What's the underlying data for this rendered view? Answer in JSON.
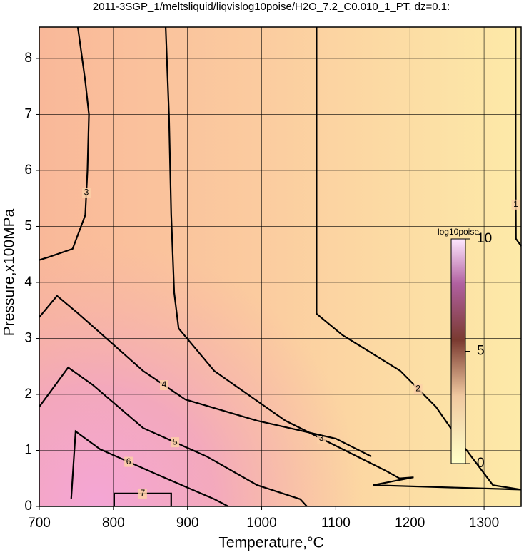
{
  "chart_data": {
    "type": "contour",
    "title": "2011-3SGP_1/meltsliquid/liqvislog10poise/H2O_7.2_C0.010_1_PT, dz=0.1:",
    "x_label": "Temperature,°C",
    "y_label": "Pressure,x100MPa",
    "xlim": [
      700,
      1350
    ],
    "ylim": [
      0,
      8.56
    ],
    "xticks": [
      700,
      800,
      900,
      1000,
      1100,
      1200,
      1300
    ],
    "yticks": [
      0,
      1,
      2,
      3,
      4,
      5,
      6,
      7,
      8
    ],
    "grid": true,
    "contours": [
      {
        "level": 1,
        "x": [
          1342.6,
          1342.6,
          1343,
          1350
        ],
        "y": [
          8.56,
          6.0,
          4.78,
          4.65
        ]
      },
      {
        "level": 2,
        "x": [
          1074,
          1074,
          1074,
          1109,
          1187,
          1235,
          1268,
          1312,
          1350
        ],
        "y": [
          8.56,
          6.0,
          3.44,
          3.06,
          2.42,
          1.78,
          1.15,
          0.38,
          0.3
        ]
      },
      {
        "level": 3,
        "x": [
          752,
          762,
          767,
          765,
          762,
          745,
          712,
          700
        ],
        "y": [
          8.56,
          7.6,
          7.0,
          6.0,
          5.2,
          4.6,
          4.45,
          4.4
        ]
      },
      {
        "level": 3,
        "x": [
          870.5,
          875,
          878,
          882,
          888,
          936,
          1032,
          1129,
          1167,
          1186,
          1205,
          1150,
          1350
        ],
        "y": [
          8.56,
          7.0,
          5.22,
          3.82,
          3.18,
          2.42,
          1.53,
          0.89,
          0.64,
          0.5,
          0.52,
          0.38,
          0.3
        ]
      },
      {
        "level": 4,
        "x": [
          700,
          724,
          753,
          840,
          897,
          994,
          1100,
          1148
        ],
        "y": [
          3.38,
          3.76,
          3.44,
          2.42,
          1.91,
          1.53,
          1.21,
          0.89
        ]
      },
      {
        "level": 5,
        "x": [
          700,
          739,
          772,
          840,
          926,
          994,
          1052,
          1061
        ],
        "y": [
          1.78,
          2.48,
          2.17,
          1.4,
          0.89,
          0.38,
          0.13,
          0
        ]
      },
      {
        "level": 6,
        "x": [
          743,
          749,
          782,
          859,
          936,
          955
        ],
        "y": [
          0.13,
          1.34,
          1.02,
          0.57,
          0.13,
          0
        ]
      },
      {
        "level": 7,
        "x": [
          801,
          801,
          878,
          878
        ],
        "y": [
          0,
          0.23,
          0.23,
          0
        ]
      }
    ],
    "colorbar": {
      "label": "log10poise",
      "lim": [
        0,
        10
      ],
      "ticks": [
        0,
        5,
        10
      ]
    }
  }
}
